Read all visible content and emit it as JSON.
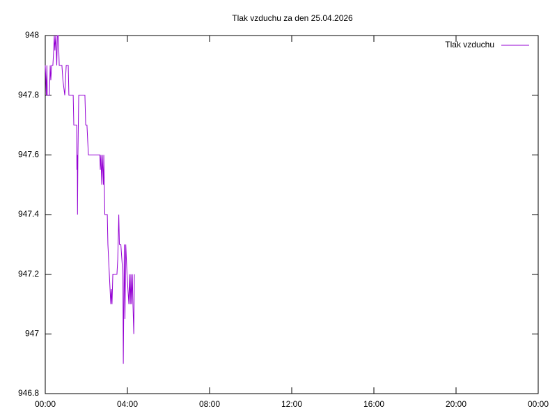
{
  "chart_data": {
    "type": "line",
    "title": "Tlak vzduchu za den 25.04.2026",
    "legend": "top-right",
    "grid": false,
    "xlim": [
      0,
      24
    ],
    "xticks": [
      {
        "value": 0,
        "label": "00:00"
      },
      {
        "value": 4,
        "label": "04:00"
      },
      {
        "value": 8,
        "label": "08:00"
      },
      {
        "value": 12,
        "label": "12:00"
      },
      {
        "value": 16,
        "label": "16:00"
      },
      {
        "value": 20,
        "label": "20:00"
      },
      {
        "value": 24,
        "label": "00:00"
      }
    ],
    "ylim": [
      946.8,
      948
    ],
    "yticks": [
      946.8,
      947,
      947.2,
      947.4,
      947.6,
      947.8,
      948
    ],
    "series": [
      {
        "name": "Tlak vzduchu",
        "color": "#9400d3",
        "x": [
          0.0,
          0.03,
          0.05,
          0.08,
          0.1,
          0.2,
          0.24,
          0.27,
          0.31,
          0.37,
          0.41,
          0.44,
          0.47,
          0.51,
          0.56,
          0.59,
          0.64,
          0.68,
          0.81,
          0.86,
          0.95,
          1.02,
          1.12,
          1.15,
          1.36,
          1.39,
          1.53,
          1.54,
          1.56,
          1.57,
          1.59,
          1.63,
          1.93,
          1.97,
          2.03,
          2.1,
          2.66,
          2.68,
          2.71,
          2.75,
          2.78,
          2.83,
          2.85,
          2.9,
          3.02,
          3.05,
          3.12,
          3.19,
          3.22,
          3.25,
          3.29,
          3.49,
          3.53,
          3.58,
          3.61,
          3.68,
          3.78,
          3.8,
          3.85,
          3.88,
          3.92,
          3.98,
          4.07,
          4.1,
          4.14,
          4.17,
          4.2,
          4.24,
          4.27,
          4.31,
          4.34
        ],
        "values": [
          947.9,
          947.85,
          947.8,
          947.9,
          947.8,
          947.8,
          947.9,
          947.85,
          947.9,
          947.9,
          947.95,
          948,
          947.95,
          948,
          947.9,
          948,
          948,
          947.9,
          947.9,
          947.85,
          947.8,
          947.9,
          947.9,
          947.8,
          947.8,
          947.7,
          947.7,
          947.55,
          947.6,
          947.4,
          947.6,
          947.8,
          947.8,
          947.7,
          947.7,
          947.6,
          947.6,
          947.55,
          947.6,
          947.5,
          947.6,
          947.5,
          947.6,
          947.4,
          947.4,
          947.3,
          947.2,
          947.1,
          947.15,
          947.1,
          947.2,
          947.2,
          947.25,
          947.4,
          947.3,
          947.3,
          947.2,
          946.9,
          947.3,
          947.05,
          947.3,
          947.2,
          947.1,
          947.2,
          947.1,
          947.2,
          947.1,
          947.2,
          947.1,
          947.0,
          947.2
        ]
      }
    ]
  }
}
